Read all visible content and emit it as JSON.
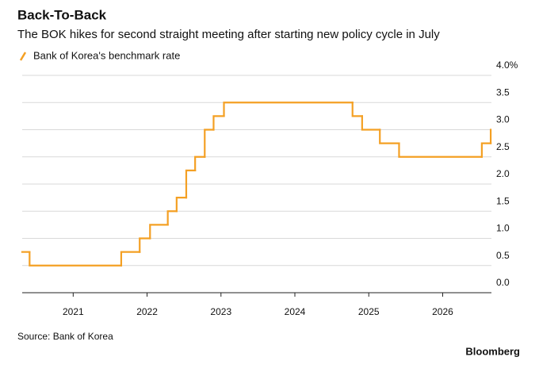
{
  "chart_data": {
    "type": "step",
    "title": "Back-To-Back",
    "subtitle": "The BOK hikes for second straight meeting after starting new policy cycle in July",
    "source": "Source: Bank of Korea",
    "brand": "Bloomberg",
    "series": [
      {
        "name": "Bank of Korea's benchmark rate",
        "color": "#f4a024",
        "x": [
          2020.31,
          2020.41,
          2021.65,
          2021.9,
          2022.04,
          2022.28,
          2022.4,
          2022.53,
          2022.65,
          2022.78,
          2022.9,
          2023.04,
          2024.78,
          2024.91,
          2025.15,
          2025.41,
          2026.53,
          2026.65
        ],
        "values": [
          0.75,
          0.5,
          0.75,
          1.0,
          1.25,
          1.5,
          1.75,
          2.25,
          2.5,
          3.0,
          3.25,
          3.5,
          3.25,
          3.0,
          2.75,
          2.5,
          2.75,
          3.0
        ]
      }
    ],
    "xlim": [
      2020.31,
      2026.66
    ],
    "xticks": [
      2021,
      2022,
      2023,
      2024,
      2025,
      2026
    ],
    "ylim": [
      0,
      4
    ],
    "yticks": [
      {
        "value": 0,
        "label": "0.0"
      },
      {
        "value": 0.5,
        "label": "0.5"
      },
      {
        "value": 1,
        "label": "1.0"
      },
      {
        "value": 1.5,
        "label": "1.5"
      },
      {
        "value": 2,
        "label": "2.0"
      },
      {
        "value": 2.5,
        "label": "2.5"
      },
      {
        "value": 3,
        "label": "3.0"
      },
      {
        "value": 3.5,
        "label": "3.5"
      },
      {
        "value": 4,
        "label": "4.0%"
      }
    ],
    "grid": true,
    "legend": "top-left"
  }
}
